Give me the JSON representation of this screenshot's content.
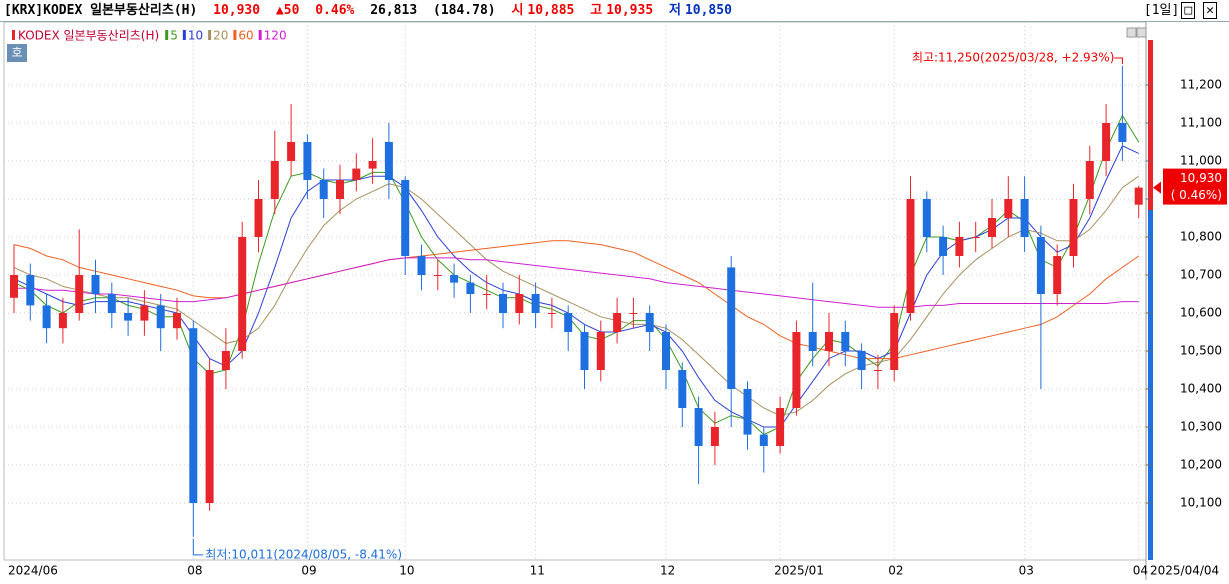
{
  "chart_data": {
    "type": "candlestick",
    "title": "[KRX]KODEX 일본부동산리츠(H)",
    "header": {
      "price": "10,930",
      "change": "▲50",
      "pct": "0.46%",
      "volume": "26,813",
      "amount": "(184.78)",
      "open_label": "시",
      "open": "10,885",
      "high_label": "고",
      "high": "10,935",
      "low_label": "저",
      "low": "10,850",
      "period": "[1일]"
    },
    "button": "호",
    "candle_name": "KODEX 일본부동산리츠(H)",
    "up_color": "#e8252a",
    "down_color": "#1e6fe0",
    "categories": [
      "2024/06",
      null,
      null,
      null,
      null,
      null,
      null,
      null,
      null,
      null,
      null,
      "08",
      null,
      null,
      null,
      null,
      null,
      null,
      "09",
      null,
      null,
      null,
      null,
      null,
      "10",
      null,
      null,
      null,
      null,
      null,
      null,
      null,
      "11",
      null,
      null,
      null,
      null,
      null,
      null,
      null,
      "12",
      null,
      null,
      null,
      null,
      null,
      null,
      "2025/01",
      null,
      null,
      null,
      null,
      null,
      null,
      "02",
      null,
      null,
      null,
      null,
      null,
      null,
      null,
      "03",
      null,
      null,
      null,
      null,
      null,
      null,
      "04"
    ],
    "open": [
      10640,
      10700,
      10620,
      10560,
      10600,
      10700,
      10650,
      10600,
      10580,
      10620,
      10560,
      10560,
      10100,
      10450,
      10500,
      10800,
      10900,
      11000,
      11050,
      10950,
      10900,
      10950,
      10980,
      11050,
      10950,
      10750,
      10700,
      10700,
      10680,
      10650,
      10650,
      10600,
      10650,
      10600,
      10600,
      10550,
      10450,
      10550,
      10600,
      10600,
      10550,
      10450,
      10350,
      10250,
      10720,
      10400,
      10280,
      10250,
      10350,
      10550,
      10500,
      10550,
      10500,
      10450,
      10450,
      10600,
      10900,
      10800,
      10750,
      10800,
      10800,
      10850,
      10900,
      10800,
      10650,
      10750,
      10900,
      11000,
      11100,
      10885
    ],
    "high": [
      10780,
      10730,
      10650,
      10640,
      10820,
      10740,
      10680,
      10640,
      10660,
      10650,
      10640,
      10580,
      10480,
      10560,
      10840,
      10950,
      11080,
      11150,
      11070,
      10980,
      10990,
      11020,
      11060,
      11100,
      10960,
      10780,
      10740,
      10730,
      10700,
      10700,
      10680,
      10700,
      10680,
      10640,
      10620,
      10570,
      10580,
      10640,
      10640,
      10620,
      10570,
      10470,
      10380,
      10340,
      10750,
      10420,
      10300,
      10380,
      10580,
      10680,
      10600,
      10580,
      10520,
      10490,
      10620,
      10960,
      10920,
      10830,
      10840,
      10840,
      10900,
      10960,
      10960,
      10830,
      10780,
      10940,
      11040,
      11150,
      11250,
      10935
    ],
    "low": [
      10600,
      10580,
      10520,
      10520,
      10580,
      10600,
      10560,
      10540,
      10540,
      10500,
      10530,
      10011,
      10080,
      10400,
      10480,
      10760,
      10860,
      10960,
      10900,
      10850,
      10860,
      10920,
      10940,
      10900,
      10700,
      10660,
      10660,
      10640,
      10600,
      10610,
      10560,
      10570,
      10560,
      10560,
      10500,
      10400,
      10420,
      10520,
      10560,
      10500,
      10400,
      10300,
      10150,
      10200,
      10300,
      10240,
      10180,
      10230,
      10330,
      10460,
      10460,
      10460,
      10400,
      10400,
      10420,
      10580,
      10760,
      10700,
      10720,
      10760,
      10770,
      10800,
      10760,
      10400,
      10620,
      10720,
      10860,
      10960,
      11000,
      10850
    ],
    "close": [
      10700,
      10620,
      10560,
      10600,
      10700,
      10650,
      10600,
      10580,
      10620,
      10560,
      10600,
      10100,
      10450,
      10500,
      10800,
      10900,
      11000,
      11050,
      10950,
      10900,
      10950,
      10980,
      11000,
      10950,
      10750,
      10700,
      10700,
      10680,
      10650,
      10650,
      10600,
      10650,
      10600,
      10600,
      10550,
      10450,
      10550,
      10600,
      10600,
      10550,
      10450,
      10350,
      10250,
      10300,
      10400,
      10280,
      10250,
      10350,
      10550,
      10500,
      10550,
      10500,
      10450,
      10450,
      10600,
      10900,
      10800,
      10750,
      10800,
      10800,
      10850,
      10900,
      10800,
      10650,
      10750,
      10900,
      11000,
      11100,
      11050,
      10930
    ],
    "series": [
      {
        "name": "5",
        "color": "#3c9a1e",
        "values": [
          10680,
          10660,
          10620,
          10600,
          10630,
          10640,
          10640,
          10620,
          10610,
          10590,
          10590,
          10480,
          10440,
          10450,
          10560,
          10730,
          10870,
          10960,
          10970,
          10950,
          10940,
          10950,
          10970,
          10970,
          10890,
          10800,
          10740,
          10700,
          10680,
          10660,
          10640,
          10640,
          10620,
          10610,
          10590,
          10540,
          10530,
          10550,
          10580,
          10580,
          10530,
          10450,
          10350,
          10310,
          10330,
          10320,
          10280,
          10300,
          10420,
          10480,
          10530,
          10520,
          10490,
          10460,
          10520,
          10700,
          10800,
          10800,
          10790,
          10800,
          10830,
          10870,
          10840,
          10740,
          10720,
          10800,
          10910,
          11030,
          11120,
          11050
        ]
      },
      {
        "name": "10",
        "color": "#2a3fd8",
        "values": [
          10690,
          10670,
          10650,
          10630,
          10620,
          10630,
          10630,
          10630,
          10620,
          10610,
          10600,
          10540,
          10480,
          10460,
          10500,
          10600,
          10720,
          10850,
          10920,
          10950,
          10950,
          10950,
          10960,
          10960,
          10930,
          10870,
          10800,
          10750,
          10710,
          10680,
          10660,
          10650,
          10630,
          10620,
          10600,
          10570,
          10550,
          10550,
          10560,
          10570,
          10550,
          10500,
          10430,
          10370,
          10340,
          10320,
          10300,
          10300,
          10360,
          10420,
          10480,
          10500,
          10500,
          10480,
          10500,
          10600,
          10700,
          10760,
          10790,
          10800,
          10820,
          10850,
          10850,
          10800,
          10760,
          10780,
          10850,
          10950,
          11040,
          11020
        ]
      },
      {
        "name": "20",
        "color": "#a89060",
        "values": [
          10720,
          10700,
          10690,
          10670,
          10660,
          10650,
          10640,
          10640,
          10630,
          10620,
          10610,
          10580,
          10550,
          10520,
          10530,
          10560,
          10620,
          10700,
          10770,
          10830,
          10870,
          10900,
          10920,
          10940,
          10930,
          10900,
          10860,
          10820,
          10780,
          10740,
          10710,
          10690,
          10670,
          10650,
          10630,
          10610,
          10590,
          10580,
          10570,
          10570,
          10560,
          10530,
          10490,
          10450,
          10410,
          10380,
          10350,
          10330,
          10340,
          10370,
          10410,
          10440,
          10460,
          10470,
          10480,
          10530,
          10590,
          10650,
          10700,
          10740,
          10770,
          10800,
          10820,
          10810,
          10790,
          10790,
          10820,
          10870,
          10930,
          10960
        ]
      },
      {
        "name": "60",
        "color": "#f06020",
        "values": [
          10780,
          10770,
          10750,
          10740,
          10720,
          10710,
          10700,
          10690,
          10680,
          10670,
          10660,
          10645,
          10640,
          10640,
          10650,
          10660,
          10670,
          10680,
          10690,
          10700,
          10710,
          10720,
          10730,
          10740,
          10745,
          10750,
          10755,
          10760,
          10765,
          10770,
          10775,
          10780,
          10785,
          10790,
          10790,
          10785,
          10780,
          10770,
          10760,
          10740,
          10720,
          10700,
          10680,
          10650,
          10620,
          10590,
          10570,
          10540,
          10520,
          10510,
          10500,
          10490,
          10480,
          10480,
          10480,
          10490,
          10500,
          10510,
          10520,
          10530,
          10540,
          10550,
          10560,
          10570,
          10590,
          10620,
          10650,
          10690,
          10720,
          10750
        ]
      },
      {
        "name": "120",
        "color": "#d020d0",
        "values": [
          10665,
          10665,
          10660,
          10660,
          10655,
          10650,
          10650,
          10645,
          10640,
          10635,
          10630,
          10630,
          10635,
          10640,
          10650,
          10660,
          10670,
          10680,
          10690,
          10700,
          10710,
          10720,
          10730,
          10740,
          10745,
          10745,
          10745,
          10745,
          10740,
          10740,
          10735,
          10730,
          10725,
          10720,
          10715,
          10710,
          10705,
          10700,
          10695,
          10690,
          10680,
          10675,
          10670,
          10665,
          10660,
          10655,
          10650,
          10645,
          10640,
          10635,
          10630,
          10625,
          10620,
          10615,
          10615,
          10615,
          10620,
          10620,
          10625,
          10625,
          10625,
          10625,
          10625,
          10625,
          10625,
          10625,
          10625,
          10625,
          10630,
          10630
        ]
      }
    ],
    "ylim": [
      9950,
      11350
    ],
    "yticks": [
      {
        "value": 11200,
        "label": "11,200"
      },
      {
        "value": 11100,
        "label": "11,100"
      },
      {
        "value": 11000,
        "label": "11,000"
      },
      {
        "value": 10900,
        "label": "10,900"
      },
      {
        "value": 10800,
        "label": "10,800"
      },
      {
        "value": 10700,
        "label": "10,700"
      },
      {
        "value": 10600,
        "label": "10,600"
      },
      {
        "value": 10500,
        "label": "10,500"
      },
      {
        "value": 10400,
        "label": "10,400"
      },
      {
        "value": 10300,
        "label": "10,300"
      },
      {
        "value": 10200,
        "label": "10,200"
      },
      {
        "value": 10100,
        "label": "10,100"
      }
    ],
    "grid": true,
    "last_date": "2025/04/04",
    "max_annotation": "최고:11,250(2025/03/28, +2.93%)",
    "min_annotation": "최저:10,011(2024/08/05, -8.41%)",
    "last_tag": {
      "price": "10,930",
      "pct": "( 0.46%)"
    }
  }
}
